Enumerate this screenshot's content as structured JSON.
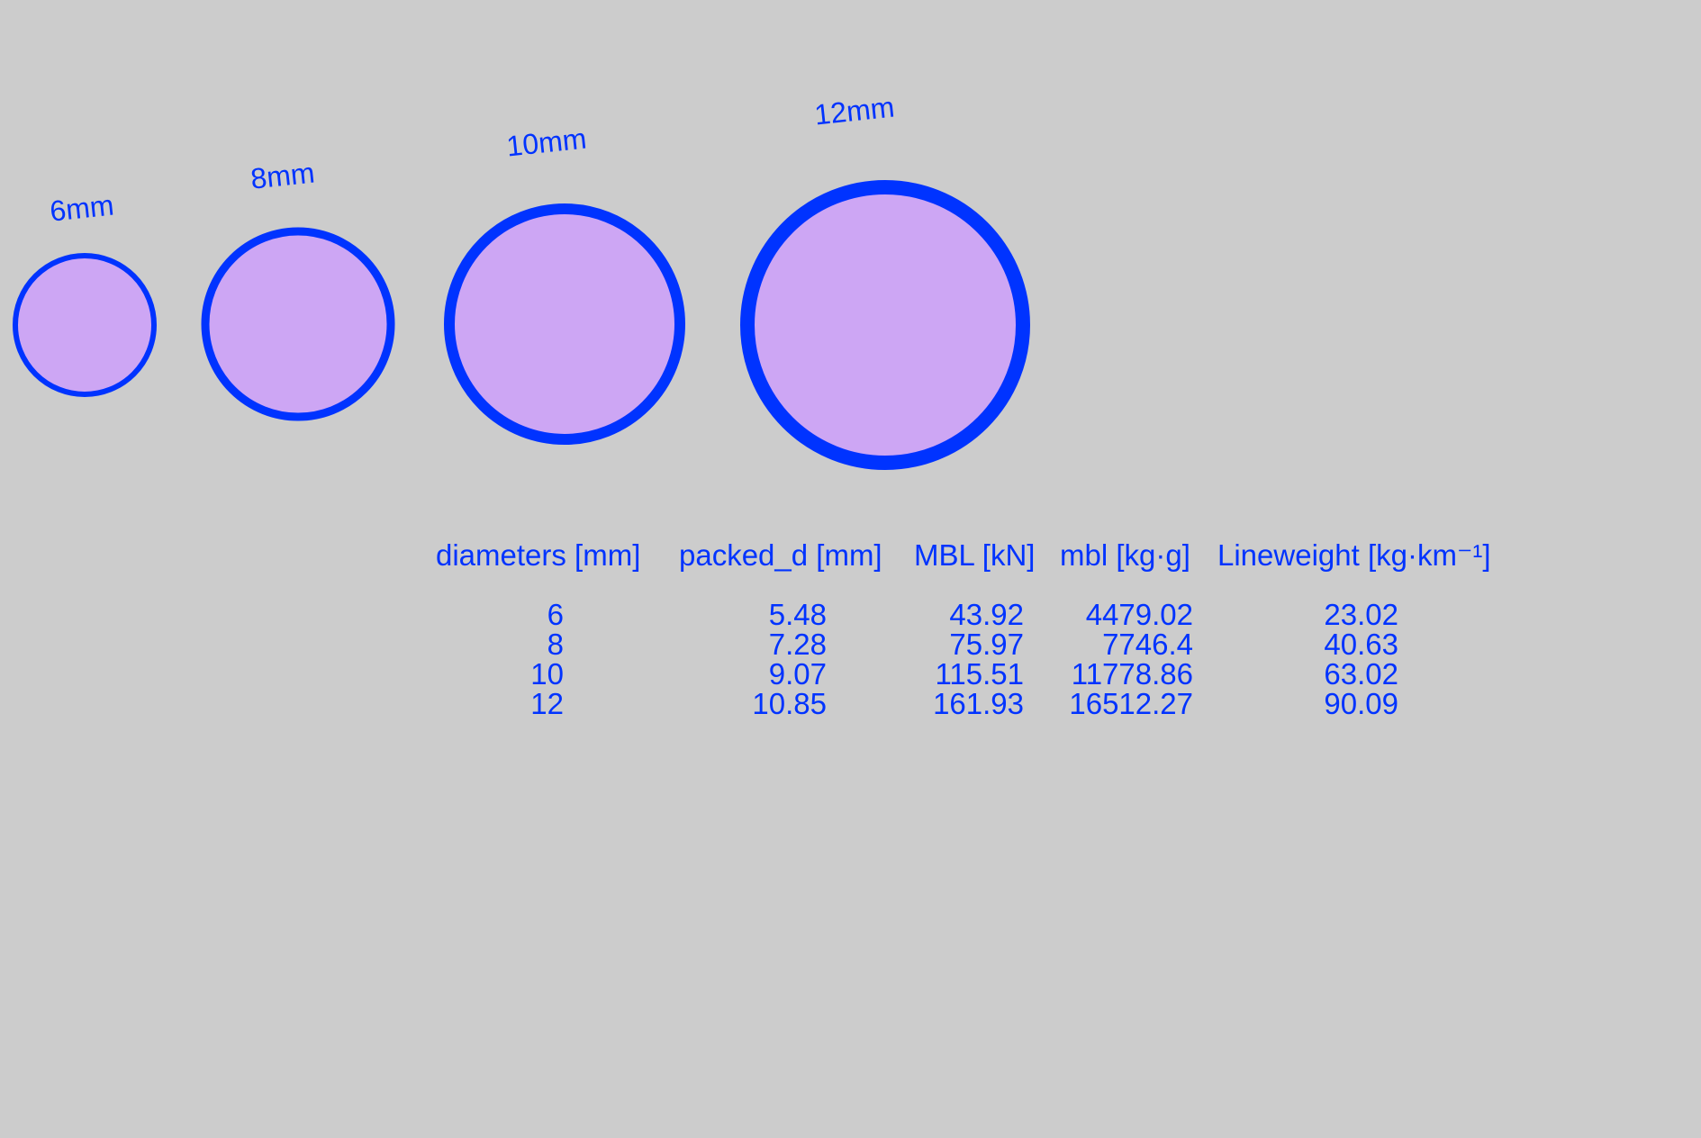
{
  "colors": {
    "background": "#cccccc",
    "ring": "#0033ff",
    "fill": "#cda6f4",
    "text": "#0033ff"
  },
  "ropes": [
    {
      "label": "6mm",
      "diameter_mm": 6
    },
    {
      "label": "8mm",
      "diameter_mm": 8
    },
    {
      "label": "10mm",
      "diameter_mm": 10
    },
    {
      "label": "12mm",
      "diameter_mm": 12
    }
  ],
  "table": {
    "headers": [
      "diameters [mm]",
      "packed_d [mm]",
      "MBL [kN]",
      "mbl [kg·g]",
      "Lineweight [kg·km⁻¹]"
    ],
    "rows": [
      [
        "6",
        "5.48",
        "43.92",
        "4479.02",
        "23.02"
      ],
      [
        "8",
        "7.28",
        "75.97",
        "7746.4",
        "40.63"
      ],
      [
        "10",
        "9.07",
        "115.51",
        "11778.86",
        "63.02"
      ],
      [
        "12",
        "10.85",
        "161.93",
        "16512.27",
        "90.09"
      ]
    ]
  }
}
